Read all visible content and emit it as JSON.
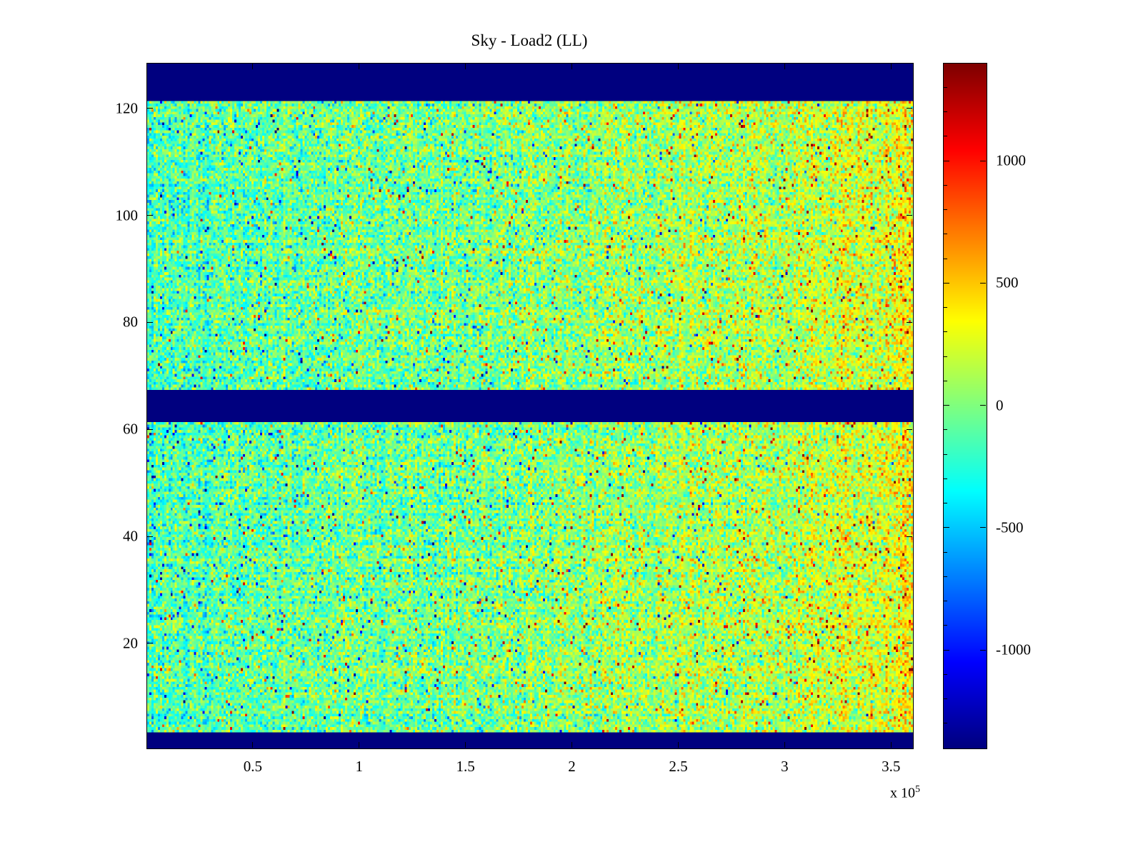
{
  "figure": {
    "background": "#ffffff"
  },
  "chart_data": {
    "type": "heatmap",
    "title": "Sky - Load2 (LL)",
    "xlabel": "",
    "ylabel": "",
    "x_range": [
      0,
      360000
    ],
    "x_ticks": [
      50000,
      100000,
      150000,
      200000,
      250000,
      300000,
      350000
    ],
    "x_tick_labels": [
      "0.5",
      "1",
      "1.5",
      "2",
      "2.5",
      "3",
      "3.5"
    ],
    "x_multiplier": {
      "prefix": "x 10",
      "exponent": "5"
    },
    "y_range": [
      0.5,
      128.5
    ],
    "y_ticks": [
      20,
      40,
      60,
      80,
      100,
      120
    ],
    "y_tick_labels": [
      "20",
      "40",
      "60",
      "80",
      "100",
      "120"
    ],
    "grid": false,
    "legend": "none",
    "colormap": "jet",
    "color_range": [
      -1400,
      1400
    ],
    "colorbar_ticks": [
      1000,
      500,
      0,
      -500,
      -1000
    ],
    "colorbar_tick_labels": [
      "1000",
      "500",
      "0",
      "-500",
      "-1000"
    ],
    "colorbar_minor_tick_step": 100,
    "masked_bands_rows": [
      [
        121.5,
        128.5
      ],
      [
        61.5,
        67.5
      ],
      [
        0.5,
        3.5
      ]
    ],
    "masked_value": -1400,
    "noise_model": {
      "mean_left": -140,
      "mean_right": 165,
      "right_edge_boost": 130,
      "std": 215,
      "column_streak_std": 55,
      "row_streak_std": 45,
      "spike_probability": 0.035,
      "spike_amplitude": 900,
      "seed": 20240807,
      "grid_cols": 360,
      "grid_rows": 256
    },
    "description": "Waterfall-style heatmap of noisy values centered near zero (green/cyan) trending warmer (yellow/orange/red speckles) toward high x; solid dark-blue masked bands at rows ~122-128, ~62-67 and ~1-3."
  }
}
